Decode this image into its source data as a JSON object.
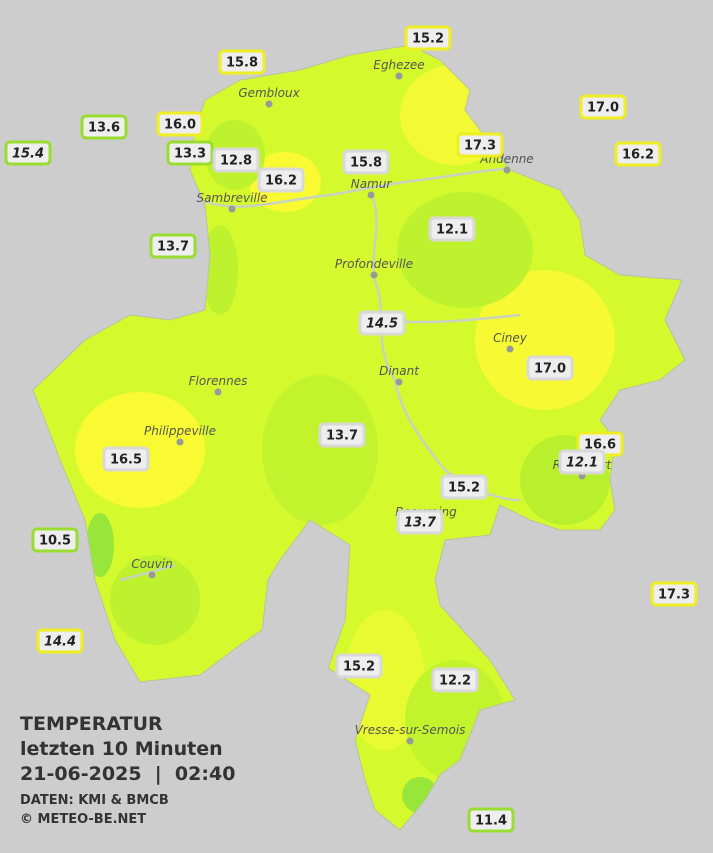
{
  "title": {
    "line1": "TEMPERATUR",
    "line2": "letzten 10 Minuten",
    "line3": "21-06-2025  |  02:40",
    "source": "DATEN: KMI & BMCB",
    "copyright": "© METEO-BE.NET"
  },
  "cities": [
    "Eghezee",
    "Gembloux",
    "Andenne",
    "Namur",
    "Sambreville",
    "Profondeville",
    "Ciney",
    "Dinant",
    "Florennes",
    "Philippeville",
    "Rochefort",
    "Beauraing",
    "Couvin",
    "Vresse-sur-Semois"
  ],
  "stations": [
    {
      "value": "15.2",
      "border": "#eeee22"
    },
    {
      "value": "15.8",
      "border": "#eeee22"
    },
    {
      "value": "17.0",
      "border": "#eeee22"
    },
    {
      "value": "13.6",
      "border": "#99dd33"
    },
    {
      "value": "16.0",
      "border": "#eeee22"
    },
    {
      "value": "15.4",
      "border": "#99dd33",
      "italic": true
    },
    {
      "value": "13.3",
      "border": "#99dd33"
    },
    {
      "value": "12.8",
      "border": "#d8d8d8"
    },
    {
      "value": "16.2",
      "border": "#d8d8d8"
    },
    {
      "value": "15.8",
      "border": "#d8d8d8"
    },
    {
      "value": "17.3",
      "border": "#eeee22"
    },
    {
      "value": "16.2",
      "border": "#eeee22"
    },
    {
      "value": "12.1",
      "border": "#d8d8d8"
    },
    {
      "value": "13.7",
      "border": "#99dd33"
    },
    {
      "value": "14.5",
      "border": "#d8d8d8",
      "italic": true
    },
    {
      "value": "17.0",
      "border": "#d8d8d8"
    },
    {
      "value": "13.7",
      "border": "#d8d8d8"
    },
    {
      "value": "16.6",
      "border": "#eeee22"
    },
    {
      "value": "12.1",
      "border": "#d8d8d8",
      "italic": true
    },
    {
      "value": "16.5",
      "border": "#d8d8d8"
    },
    {
      "value": "15.2",
      "border": "#d8d8d8"
    },
    {
      "value": "13.7",
      "border": "#d8d8d8",
      "italic": true
    },
    {
      "value": "10.5",
      "border": "#99dd33"
    },
    {
      "value": "17.3",
      "border": "#eeee22"
    },
    {
      "value": "14.4",
      "border": "#eeee22",
      "italic": true
    },
    {
      "value": "15.2",
      "border": "#d8d8d8"
    },
    {
      "value": "12.2",
      "border": "#d8d8d8"
    },
    {
      "value": "11.4",
      "border": "#99dd33"
    }
  ]
}
